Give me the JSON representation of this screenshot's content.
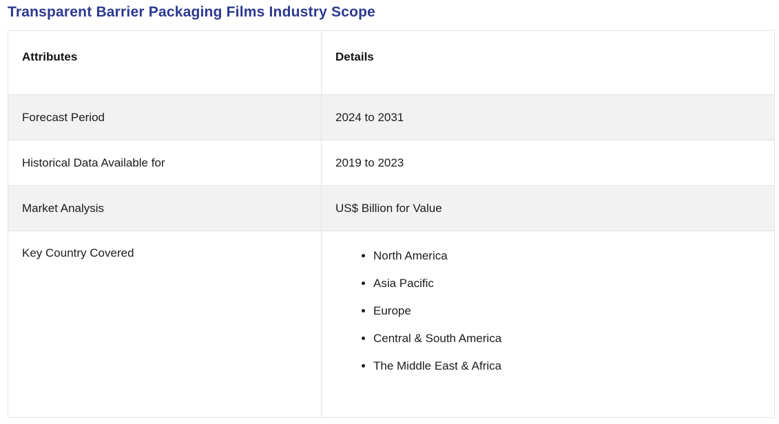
{
  "page": {
    "title": "Transparent Barrier Packaging Films Industry Scope"
  },
  "table": {
    "headers": [
      "Attributes",
      "Details"
    ],
    "rows": [
      {
        "attribute": "Forecast Period",
        "detail": "2024 to 2031"
      },
      {
        "attribute": "Historical Data Available for",
        "detail": "2019 to 2023"
      },
      {
        "attribute": "Market Analysis",
        "detail": "US$ Billion for Value"
      },
      {
        "attribute": "Key Country Covered",
        "detail_list": [
          "North America",
          "Asia Pacific",
          "Europe",
          "Central & South America",
          "The Middle East & Africa"
        ]
      }
    ]
  },
  "colors": {
    "title_text": "#2b3990",
    "alt_row_background": "#f2f2f2",
    "table_border": "#e2e2e2",
    "body_text": "#1c1c1c"
  }
}
